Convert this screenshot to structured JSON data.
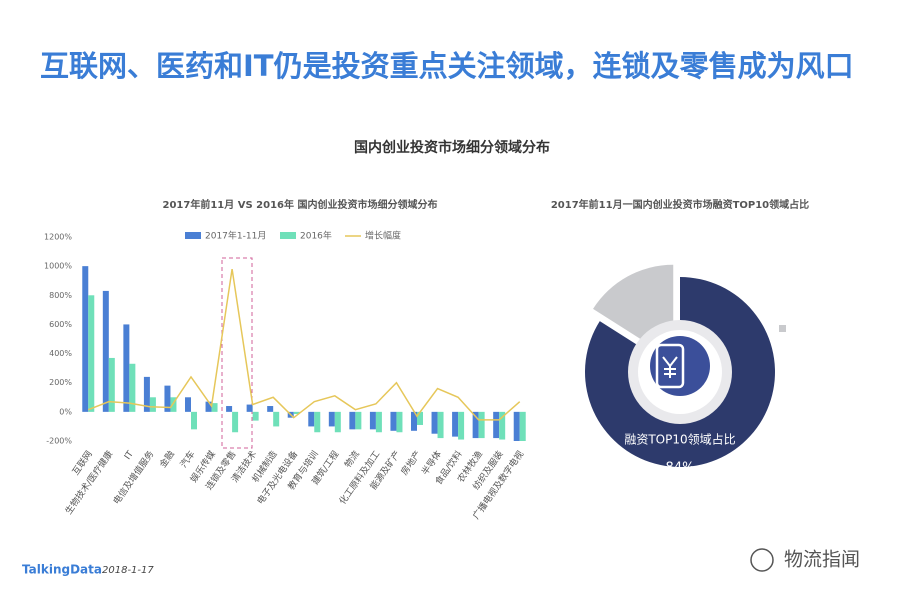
{
  "header": {
    "title": "互联网、医药和IT仍是投资重点关注领域，连锁及零售成为风口",
    "subtitle": "国内创业投资市场细分领域分布"
  },
  "footer": {
    "brand": "TalkingData",
    "date": "2018-1-17",
    "watermark": "物流指闻"
  },
  "chart_data": [
    {
      "type": "bar",
      "title": "2017年前11月 VS 2016年 国内创业投资市场细分领域分布",
      "categories": [
        "互联网",
        "生物技术/医疗健康",
        "IT",
        "电信及增值服务",
        "金融",
        "汽车",
        "娱乐传媒",
        "连锁及零售",
        "清洁技术",
        "机械制造",
        "电子及光电设备",
        "教育与培训",
        "建筑/工程",
        "物流",
        "化工原料及加工",
        "能源及矿产",
        "房地产",
        "半导体",
        "食品/饮料",
        "农林牧渔",
        "纺织及服装",
        "广播电视及数字电视"
      ],
      "series": [
        {
          "name": "2017年1-11月",
          "type": "bar",
          "color": "#4a7fd4",
          "values": [
            1000,
            830,
            600,
            240,
            180,
            100,
            70,
            40,
            50,
            40,
            -40,
            -100,
            -100,
            -120,
            -120,
            -130,
            -130,
            -150,
            -170,
            -180,
            -180,
            -200
          ]
        },
        {
          "name": "2016年",
          "type": "bar",
          "color": "#6fe0b9",
          "values": [
            800,
            370,
            330,
            100,
            100,
            -120,
            60,
            -140,
            -60,
            -100,
            -15,
            -140,
            -140,
            -120,
            -140,
            -140,
            -90,
            -180,
            -190,
            -180,
            -190,
            -200
          ]
        },
        {
          "name": "增长幅度",
          "type": "line",
          "color": "#e6c75a",
          "values": [
            15,
            70,
            60,
            35,
            30,
            240,
            40,
            980,
            50,
            100,
            -40,
            70,
            110,
            15,
            55,
            200,
            -30,
            160,
            100,
            -55,
            -55,
            70
          ]
        }
      ],
      "ylim": [
        -200,
        1200
      ],
      "yticks": [
        {
          "value": -200,
          "label": "-200%"
        },
        {
          "value": 0,
          "label": "0%"
        },
        {
          "value": 200,
          "label": "200%"
        },
        {
          "value": 400,
          "label": "400%"
        },
        {
          "value": 600,
          "label": "600%"
        },
        {
          "value": 800,
          "label": "800%"
        },
        {
          "value": 1000,
          "label": "1000%"
        },
        {
          "value": 1200,
          "label": "1200%"
        }
      ],
      "grid": false
    },
    {
      "type": "pie",
      "title": "2017年前11月一国内创业投资市场融资TOP10领域占比",
      "categories": [
        "融资TOP10领域占比",
        null
      ],
      "values": [
        84,
        16
      ],
      "value_labels": [
        "84%",
        null
      ],
      "colors": [
        "#2d3a6c",
        "#c9cacd"
      ]
    }
  ]
}
